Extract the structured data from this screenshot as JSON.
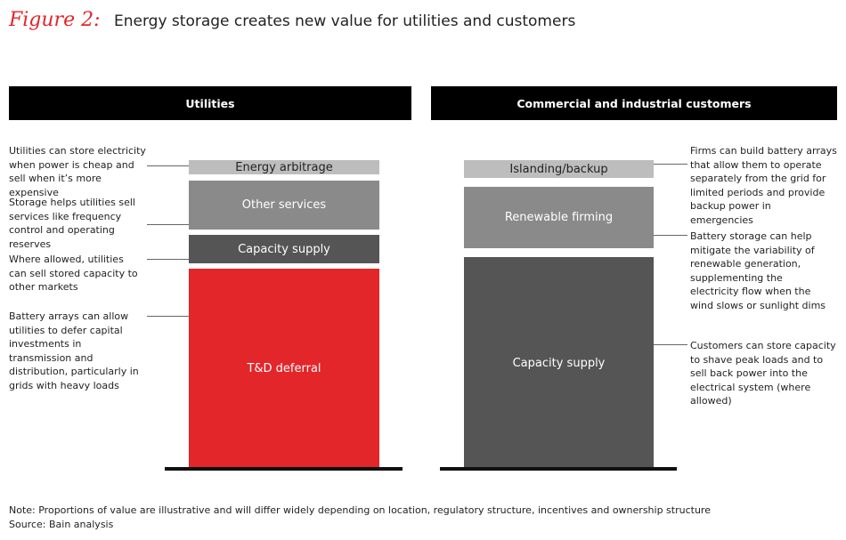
{
  "header": {
    "figure": "Figure 2:",
    "title": "Energy storage creates new value for utilities and customers"
  },
  "panels": [
    {
      "title": "Utilities",
      "blocks": [
        {
          "label": "Energy arbitrage"
        },
        {
          "label": "Other services"
        },
        {
          "label": "Capacity supply"
        },
        {
          "label": "T&D deferral"
        }
      ],
      "annotations": [
        "Utilities can store electricity when power is cheap and sell when it’s more expensive",
        "Storage helps utilities sell services like frequency control and operating reserves",
        "Where allowed, utilities can sell stored capacity to other markets",
        "Battery arrays can allow utilities to defer capital investments in transmission and distribution, particularly in grids with heavy loads"
      ]
    },
    {
      "title": "Commercial and industrial customers",
      "blocks": [
        {
          "label": "Islanding/backup"
        },
        {
          "label": "Renewable firming"
        },
        {
          "label": "Capacity supply"
        }
      ],
      "annotations": [
        "Firms can build battery arrays that allow them to operate separately from the grid for limited periods and provide backup power in emergencies",
        "Battery storage can help mitigate the variability of renewable generation, supplementing the electricity flow when the wind slows or sunlight dims",
        "Customers can store capacity to shave peak loads and to sell back power into the electrical system (where allowed)"
      ]
    }
  ],
  "footer": {
    "note": "Note: Proportions of value are illustrative and will differ widely depending on location, regulatory structure, incentives and ownership structure",
    "source": "Source: Bain analysis"
  }
}
